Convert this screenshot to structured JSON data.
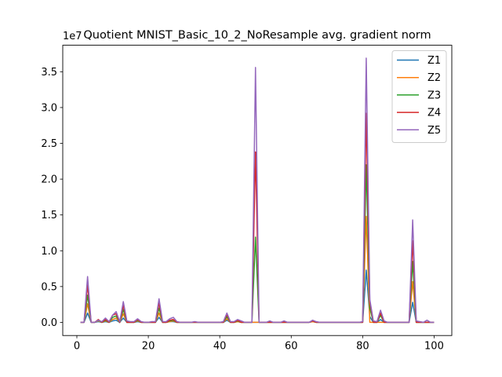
{
  "chart_data": {
    "type": "line",
    "title": "Quotient MNIST_Basic_10_2_NoResample avg. gradient norm",
    "xlabel": "",
    "ylabel": "",
    "offset_text": "1e7",
    "xlim": [
      -3.95,
      104.95
    ],
    "ylim": [
      -0.184,
      3.87
    ],
    "xticks": [
      0,
      20,
      40,
      60,
      80,
      100
    ],
    "xtick_labels": [
      "0",
      "20",
      "40",
      "60",
      "80",
      "100"
    ],
    "yticks": [
      0.0,
      0.5,
      1.0,
      1.5,
      2.0,
      2.5,
      3.0,
      3.5
    ],
    "ytick_labels": [
      "0.0",
      "0.5",
      "1.0",
      "1.5",
      "2.0",
      "2.5",
      "3.0",
      "3.5"
    ],
    "grid": false,
    "legend_position": "top-right",
    "x": [
      1,
      2,
      3,
      4,
      5,
      6,
      7,
      8,
      9,
      10,
      11,
      12,
      13,
      14,
      15,
      16,
      17,
      18,
      19,
      20,
      21,
      22,
      23,
      24,
      25,
      26,
      27,
      28,
      29,
      30,
      31,
      32,
      33,
      34,
      35,
      36,
      37,
      38,
      39,
      40,
      41,
      42,
      43,
      44,
      45,
      46,
      47,
      48,
      49,
      50,
      51,
      52,
      53,
      54,
      55,
      56,
      57,
      58,
      59,
      60,
      61,
      62,
      63,
      64,
      65,
      66,
      67,
      68,
      69,
      70,
      71,
      72,
      73,
      74,
      75,
      76,
      77,
      78,
      79,
      80,
      81,
      82,
      83,
      84,
      85,
      86,
      87,
      88,
      89,
      90,
      91,
      92,
      93,
      94,
      95,
      96,
      97,
      98,
      99,
      100
    ],
    "series": [
      {
        "name": "Z1",
        "color": "#1f77b4",
        "values": [
          0,
          0,
          0.13,
          0,
          0,
          0.01,
          0,
          0.01,
          0,
          0.02,
          0.03,
          0,
          0.06,
          0,
          0,
          0,
          0.01,
          0,
          0,
          0,
          0,
          0,
          0.07,
          0,
          0,
          0.01,
          0.01,
          0,
          0,
          0,
          0,
          0,
          0,
          0,
          0,
          0,
          0,
          0,
          0,
          0,
          0,
          0.03,
          0,
          0,
          0.01,
          0,
          0,
          0,
          0,
          0,
          0,
          0,
          0,
          0,
          0,
          0,
          0,
          0,
          0,
          0,
          0,
          0,
          0,
          0,
          0,
          0.01,
          0,
          0,
          0,
          0,
          0,
          0,
          0,
          0,
          0,
          0,
          0,
          0,
          0,
          0,
          0.73,
          0.08,
          0,
          0,
          0.04,
          0,
          0,
          0,
          0,
          0,
          0,
          0,
          0,
          0.28,
          0,
          0,
          0,
          0,
          0,
          0
        ]
      },
      {
        "name": "Z2",
        "color": "#ff7f0e",
        "values": [
          0,
          0,
          0.26,
          0,
          0,
          0.02,
          0,
          0.02,
          0,
          0.04,
          0.06,
          0,
          0.12,
          0,
          0,
          0,
          0.02,
          0,
          0,
          0,
          0,
          0,
          0.13,
          0,
          0,
          0.01,
          0.02,
          0,
          0,
          0,
          0,
          0,
          0,
          0,
          0,
          0,
          0,
          0,
          0,
          0,
          0,
          0.05,
          0,
          0,
          0.01,
          0,
          0,
          0,
          0,
          0,
          0,
          0,
          0,
          0,
          0,
          0,
          0,
          0,
          0,
          0,
          0,
          0,
          0,
          0,
          0,
          0.01,
          0,
          0,
          0,
          0,
          0,
          0,
          0,
          0,
          0,
          0,
          0,
          0,
          0,
          0,
          1.48,
          0,
          0,
          0,
          0,
          0,
          0,
          0,
          0,
          0,
          0,
          0,
          0,
          0.57,
          0,
          0,
          0,
          0,
          0,
          0
        ]
      },
      {
        "name": "Z3",
        "color": "#2ca02c",
        "values": [
          0,
          0,
          0.38,
          0,
          0,
          0.03,
          0,
          0.03,
          0,
          0.07,
          0.09,
          0,
          0.18,
          0,
          0,
          0,
          0.03,
          0,
          0,
          0,
          0,
          0,
          0.2,
          0,
          0,
          0.02,
          0.03,
          0,
          0,
          0,
          0,
          0,
          0,
          0,
          0,
          0,
          0,
          0,
          0,
          0,
          0,
          0.08,
          0,
          0,
          0.02,
          0,
          0,
          0,
          0,
          1.19,
          0,
          0,
          0,
          0,
          0,
          0,
          0,
          0,
          0,
          0,
          0,
          0,
          0,
          0,
          0,
          0.02,
          0,
          0,
          0,
          0,
          0,
          0,
          0,
          0,
          0,
          0,
          0,
          0,
          0,
          0,
          2.2,
          0.2,
          0,
          0,
          0.1,
          0,
          0,
          0,
          0,
          0,
          0,
          0,
          0,
          0.85,
          0,
          0,
          0,
          0,
          0,
          0
        ]
      },
      {
        "name": "Z4",
        "color": "#d62728",
        "values": [
          0,
          0,
          0.52,
          0,
          0,
          0.04,
          0,
          0.04,
          0,
          0.1,
          0.12,
          0,
          0.24,
          0,
          0,
          0,
          0.04,
          0,
          0,
          0,
          0,
          0,
          0.27,
          0,
          0,
          0.03,
          0.04,
          0,
          0,
          0,
          0,
          0,
          0,
          0,
          0,
          0,
          0,
          0,
          0,
          0,
          0,
          0.11,
          0,
          0,
          0.03,
          0,
          0,
          0,
          0,
          2.38,
          0,
          0,
          0,
          0,
          0,
          0,
          0,
          0,
          0,
          0,
          0,
          0,
          0,
          0,
          0,
          0.02,
          0,
          0,
          0,
          0,
          0,
          0,
          0,
          0,
          0,
          0,
          0,
          0,
          0,
          0,
          2.92,
          0.28,
          0,
          0,
          0.13,
          0,
          0,
          0,
          0,
          0,
          0,
          0,
          0,
          1.14,
          0,
          0,
          0,
          0,
          0,
          0
        ]
      },
      {
        "name": "Z5",
        "color": "#9467bd",
        "values": [
          0,
          0,
          0.64,
          0,
          0,
          0.03,
          0.01,
          0.06,
          0.01,
          0.1,
          0.15,
          0.01,
          0.29,
          0.02,
          0.01,
          0.01,
          0.05,
          0.01,
          0,
          0,
          0.01,
          0.01,
          0.33,
          0.01,
          0.01,
          0.05,
          0.07,
          0.01,
          0,
          0,
          0,
          0,
          0.01,
          0,
          0,
          0,
          0,
          0,
          0,
          0,
          0.01,
          0.13,
          0.01,
          0.01,
          0.04,
          0.02,
          0,
          0,
          0,
          3.56,
          0,
          0,
          0,
          0.02,
          0,
          0,
          0,
          0.02,
          0,
          0,
          0,
          0,
          0,
          0,
          0,
          0.03,
          0.01,
          0,
          0,
          0,
          0,
          0,
          0,
          0,
          0,
          0,
          0,
          0,
          0,
          0.01,
          3.69,
          0.32,
          0.02,
          0.01,
          0.17,
          0.02,
          0,
          0,
          0,
          0,
          0,
          0,
          0,
          1.43,
          0.02,
          0.01,
          0,
          0.03,
          0,
          0
        ]
      }
    ]
  }
}
